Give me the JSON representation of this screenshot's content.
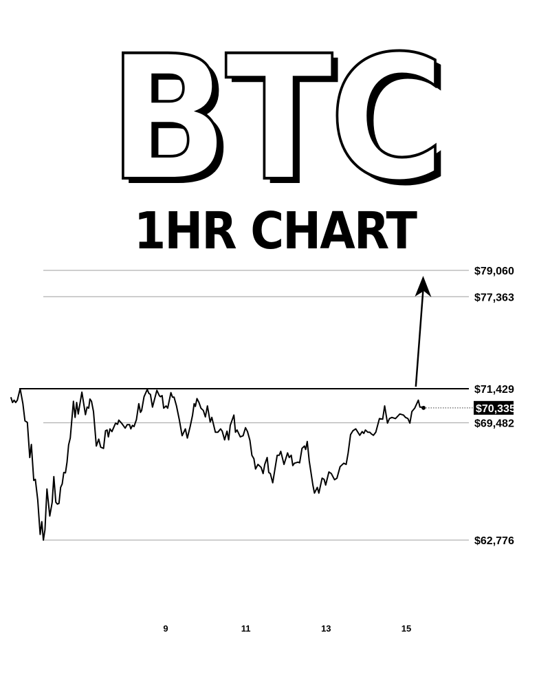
{
  "title": "BTC",
  "subtitle": "1HR CHART",
  "colors": {
    "line": "#000000",
    "level_line": "#b0b0b0",
    "key_level": "#000000",
    "last_price_bg": "#000000",
    "last_price_text": "#ffffff"
  },
  "chart_data": {
    "type": "line",
    "xlabel": "",
    "ylabel": "",
    "x_tick_labels": [
      "9",
      "11",
      "13",
      "15"
    ],
    "x_ticks": [
      9,
      11,
      13,
      15
    ],
    "xlim": [
      5.1,
      15.45
    ],
    "grid": false,
    "levels": [
      {
        "value": 79060,
        "label": "$79,060",
        "style": "gray"
      },
      {
        "value": 77363,
        "label": "$77,363",
        "style": "gray"
      },
      {
        "value": 71429,
        "label": "$71,429",
        "style": "black"
      },
      {
        "value": 69482,
        "label": "$69,482",
        "style": "gray"
      },
      {
        "value": 62776,
        "label": "$62,776",
        "style": "gray"
      }
    ],
    "last_price": {
      "value": 70335,
      "label": "$70,335"
    },
    "arrow": {
      "from": [
        15.1,
        71429
      ],
      "to": [
        15.3,
        79060
      ]
    },
    "x": [
      5.14,
      5.18,
      5.22,
      5.26,
      5.3,
      5.37,
      5.44,
      5.49,
      5.55,
      5.61,
      5.65,
      5.71,
      5.75,
      5.81,
      5.87,
      5.91,
      5.95,
      5.99,
      6.04,
      6.11,
      6.17,
      6.21,
      6.26,
      6.3,
      6.34,
      6.38,
      6.42,
      6.46,
      6.5,
      6.54,
      6.58,
      6.62,
      6.7,
      6.74,
      6.78,
      6.82,
      6.91,
      7.0,
      7.04,
      7.08,
      7.11,
      7.15,
      7.2,
      7.27,
      7.33,
      7.38,
      7.45,
      7.5,
      7.54,
      7.57,
      7.61,
      7.66,
      7.75,
      7.8,
      7.83,
      7.9,
      7.99,
      8.04,
      8.1,
      8.13,
      8.17,
      8.21,
      8.27,
      8.33,
      8.37,
      8.4,
      8.46,
      8.54,
      8.58,
      8.62,
      8.67,
      8.78,
      8.84,
      8.87,
      8.91,
      8.95,
      9.01,
      9.05,
      9.13,
      9.17,
      9.21,
      9.27,
      9.34,
      9.41,
      9.49,
      9.54,
      9.61,
      9.67,
      9.71,
      9.74,
      9.78,
      9.83,
      9.88,
      9.94,
      9.99,
      10.04,
      10.11,
      10.15,
      10.24,
      10.3,
      10.37,
      10.41,
      10.47,
      10.53,
      10.57,
      10.61,
      10.7,
      10.74,
      10.78,
      10.86,
      10.93,
      10.99,
      11.04,
      11.1,
      11.15,
      11.2,
      11.24,
      11.3,
      11.38,
      11.43,
      11.47,
      11.53,
      11.57,
      11.61,
      11.67,
      11.73,
      11.78,
      11.83,
      11.87,
      11.95,
      12.04,
      12.08,
      12.13,
      12.17,
      12.21,
      12.3,
      12.34,
      12.4,
      12.46,
      12.49,
      12.53,
      12.58,
      12.67,
      12.71,
      12.78,
      12.82,
      12.9,
      12.95,
      12.99,
      13.07,
      13.13,
      13.21,
      13.27,
      13.35,
      13.44,
      13.5,
      13.55,
      13.61,
      13.67,
      13.74,
      13.84,
      13.9,
      13.94,
      13.98,
      14.04,
      14.09,
      14.13,
      14.18,
      14.24,
      14.33,
      14.41,
      14.46,
      14.53,
      14.58,
      14.64,
      14.73,
      14.84,
      14.93,
      14.98,
      15.04,
      15.09,
      15.14,
      15.21,
      15.3,
      15.34,
      15.38,
      15.43
    ],
    "values": [
      70944,
      70642,
      70773,
      70642,
      70773,
      71429,
      70577,
      69593,
      69502,
      67496,
      68243,
      66185,
      66250,
      65070,
      63104,
      63825,
      62776,
      63366,
      65700,
      64153,
      64939,
      66408,
      64939,
      64834,
      64874,
      65791,
      65988,
      66644,
      66618,
      67234,
      68217,
      68610,
      70708,
      69790,
      70642,
      69987,
      71232,
      69947,
      70380,
      70314,
      70839,
      70708,
      70118,
      68151,
      68545,
      68086,
      68020,
      69030,
      69069,
      68676,
      69134,
      68977,
      69462,
      69397,
      69633,
      69462,
      69174,
      69371,
      69371,
      69134,
      69331,
      69266,
      69659,
      70577,
      70078,
      70183,
      70970,
      71389,
      71167,
      71101,
      70380,
      71337,
      71035,
      70970,
      71035,
      70314,
      70446,
      70314,
      71206,
      70944,
      70944,
      70446,
      69659,
      68741,
      69134,
      68610,
      69266,
      69921,
      70577,
      70419,
      70865,
      70642,
      70314,
      70183,
      69816,
      70446,
      69528,
      69790,
      68938,
      68938,
      69134,
      69003,
      68505,
      69003,
      68505,
      69331,
      69921,
      68938,
      69069,
      68676,
      68741,
      69200,
      68977,
      68479,
      67627,
      67430,
      66840,
      67102,
      66932,
      66578,
      67102,
      67496,
      66644,
      66578,
      66054,
      66906,
      67627,
      67627,
      67850,
      67102,
      67758,
      67496,
      67627,
      67037,
      67168,
      67234,
      67194,
      68020,
      68151,
      67955,
      68413,
      67299,
      65923,
      65464,
      65791,
      65464,
      66316,
      66250,
      65923,
      66670,
      66578,
      66224,
      66316,
      66971,
      67168,
      67102,
      67758,
      68807,
      69030,
      69134,
      68767,
      68977,
      68872,
      69069,
      68938,
      68938,
      68846,
      68767,
      68938,
      69724,
      69685,
      70446,
      69462,
      69724,
      69790,
      69724,
      69987,
      69921,
      69790,
      69724,
      69462,
      70118,
      70314,
      70773,
      70380,
      70380,
      70335
    ]
  }
}
